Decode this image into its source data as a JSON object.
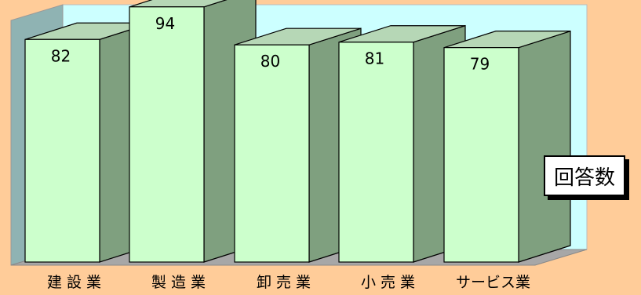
{
  "chart_data": {
    "type": "bar",
    "categories": [
      "建 設 業",
      "製 造 業",
      "卸 売 業",
      "小 売 業",
      "サービス業"
    ],
    "values": [
      82,
      94,
      80,
      81,
      79
    ],
    "legend": "回答数",
    "colors": {
      "background": "#FFCC99",
      "plot_back_wall": "#CCFFFF",
      "plot_side_wall": "#8FB3B3",
      "floor": "#A7A7A7",
      "bar_front": "#CCFFCC",
      "bar_side": "#7FA07F",
      "bar_top": "#B6D7B6"
    },
    "three_d": true,
    "grid": false
  }
}
